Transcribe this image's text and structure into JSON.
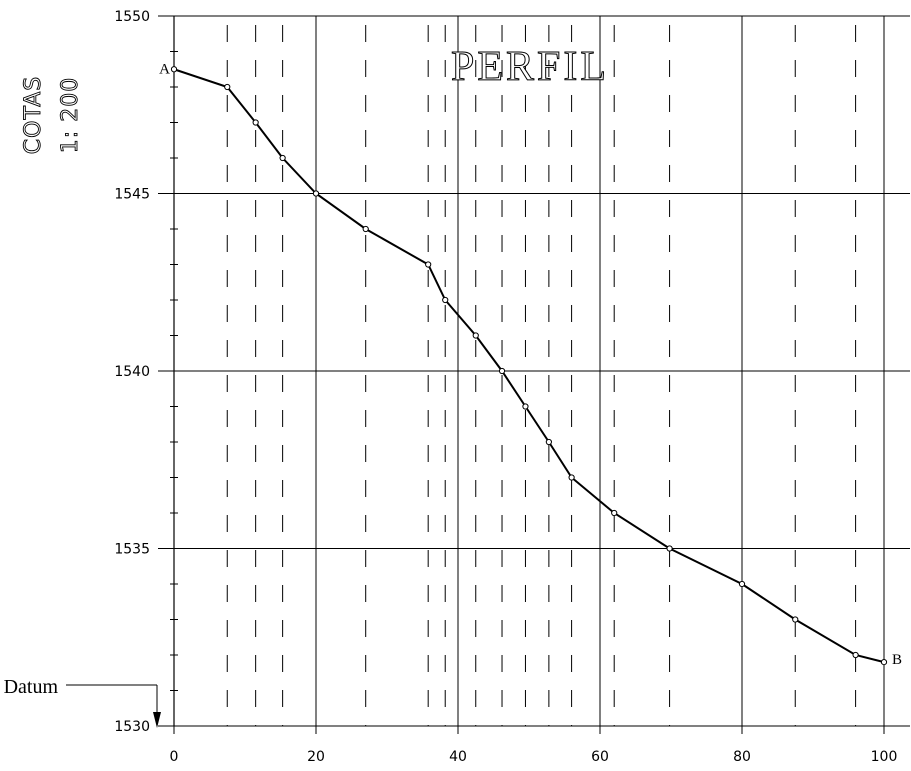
{
  "chart_data": {
    "type": "line",
    "title": "PERFIL",
    "ylabel": "COTAS",
    "yscale_label": "1: 200",
    "datum_label": "Datum",
    "xlim": [
      0,
      100
    ],
    "ylim": [
      1530,
      1550
    ],
    "x_ticks": [
      0,
      20,
      40,
      60,
      80,
      100
    ],
    "y_ticks": [
      1530,
      1535,
      1540,
      1545,
      1550
    ],
    "grid": true,
    "station_x": [
      7.5,
      11.5,
      15.3,
      27.0,
      35.8,
      38.2,
      42.5,
      46.2,
      49.5,
      52.8,
      56.0,
      62.0,
      69.8,
      80.0,
      87.5,
      96.0
    ],
    "start_label": "A",
    "end_label": "B",
    "x": [
      0,
      7.5,
      11.5,
      15.3,
      20.0,
      27.0,
      35.8,
      38.2,
      42.5,
      46.2,
      49.5,
      52.8,
      56.0,
      62.0,
      69.8,
      80.0,
      87.5,
      96.0,
      100.0
    ],
    "y": [
      1548.5,
      1548.0,
      1547.0,
      1546.0,
      1545.0,
      1544.0,
      1543.0,
      1542.0,
      1541.0,
      1540.0,
      1539.0,
      1538.0,
      1537.0,
      1536.0,
      1535.0,
      1534.0,
      1533.0,
      1532.0,
      1531.8
    ]
  }
}
